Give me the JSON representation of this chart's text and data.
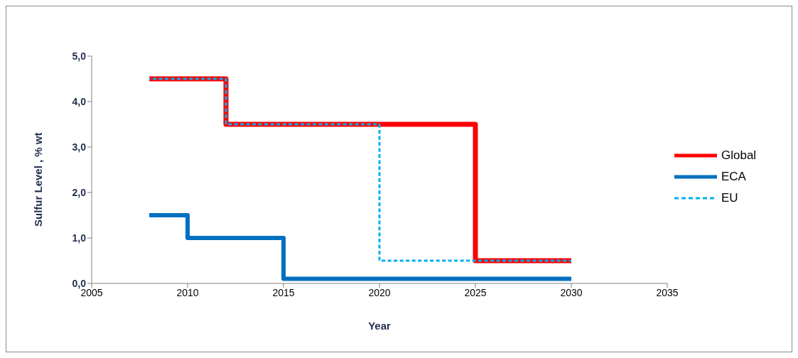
{
  "chart_data": {
    "type": "step",
    "xlabel": "Year",
    "ylabel": "Sulfur Level , % wt",
    "xlim": [
      2005,
      2035
    ],
    "xticks": [
      2005,
      2010,
      2015,
      2020,
      2025,
      2030,
      2035
    ],
    "ylim": [
      0,
      5
    ],
    "yticks": [
      {
        "value": 0,
        "label": "0,0"
      },
      {
        "value": 1,
        "label": "1,0"
      },
      {
        "value": 2,
        "label": "2,0"
      },
      {
        "value": 3,
        "label": "3,0"
      },
      {
        "value": 4,
        "label": "4,0"
      },
      {
        "value": 5,
        "label": "5,0"
      }
    ],
    "grid": false,
    "legend": "right",
    "marker": "none",
    "series": [
      {
        "name": "Global",
        "color": "#ff0000",
        "x": [
          2008,
          2012,
          2025,
          2030
        ],
        "values": [
          4.5,
          3.5,
          0.5,
          0.5
        ],
        "line_style": "solid"
      },
      {
        "name": "ECA",
        "color": "#0070c0",
        "x": [
          2008,
          2010,
          2015,
          2030
        ],
        "values": [
          1.5,
          1.0,
          0.1,
          0.1
        ],
        "line_style": "solid"
      },
      {
        "name": "EU",
        "color": "#00b0f0",
        "x": [
          2008,
          2012,
          2020,
          2030
        ],
        "values": [
          4.5,
          3.5,
          0.5,
          0.5
        ],
        "line_style": "dashed"
      }
    ]
  }
}
